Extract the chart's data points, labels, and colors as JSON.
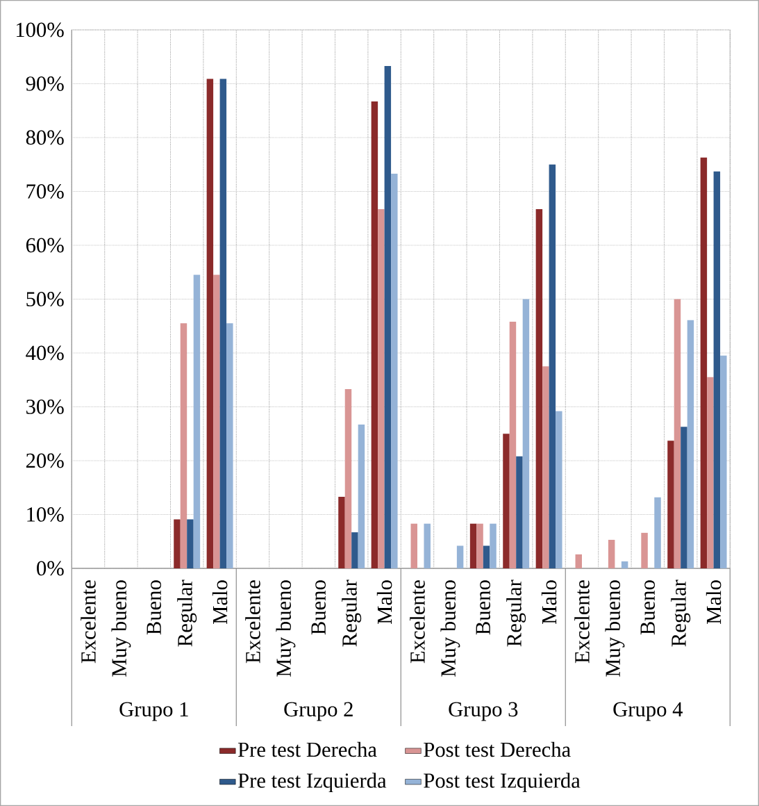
{
  "chart_data": {
    "type": "bar",
    "categories": [
      "Excelente",
      "Muy bueno",
      "Bueno",
      "Regular",
      "Malo",
      "Excelente",
      "Muy bueno",
      "Bueno",
      "Regular",
      "Malo",
      "Excelente",
      "Muy bueno",
      "Bueno",
      "Regular",
      "Malo",
      "Excelente",
      "Muy bueno",
      "Bueno",
      "Regular",
      "Malo"
    ],
    "series": [
      {
        "name": "Pre test Derecha",
        "color": "#8b2a2a",
        "values": [
          0,
          0,
          0,
          9.1,
          90.9,
          0,
          0,
          0,
          13.3,
          86.7,
          0,
          0,
          8.3,
          25,
          66.7,
          0,
          0,
          0,
          23.7,
          76.3
        ]
      },
      {
        "name": "Post test Derecha",
        "color": "#d99594",
        "values": [
          0,
          0,
          0,
          45.5,
          54.5,
          0,
          0,
          0,
          33.3,
          66.7,
          8.3,
          0,
          8.3,
          45.8,
          37.5,
          2.6,
          5.3,
          6.6,
          50,
          35.5
        ]
      },
      {
        "name": "Pre test Izquierda",
        "color": "#2f5a8c",
        "values": [
          0,
          0,
          0,
          9.1,
          90.9,
          0,
          0,
          0,
          6.7,
          93.3,
          0,
          0,
          4.2,
          20.8,
          75,
          0,
          0,
          0,
          26.3,
          73.7
        ]
      },
      {
        "name": "Post test  Izquierda",
        "color": "#95b3d7",
        "values": [
          0,
          0,
          0,
          54.5,
          45.5,
          0,
          0,
          0,
          26.7,
          73.3,
          8.3,
          4.2,
          8.3,
          50,
          29.2,
          0,
          1.3,
          13.2,
          46.1,
          39.5
        ]
      }
    ],
    "annotations": [
      "Grupo 1",
      "Grupo 2",
      "Grupo 3",
      "Grupo 4"
    ],
    "ylim": [
      0,
      100
    ],
    "yticks": [
      {
        "value": 0,
        "label": "0%"
      },
      {
        "value": 10,
        "label": "10%"
      },
      {
        "value": 20,
        "label": "20%"
      },
      {
        "value": 30,
        "label": "30%"
      },
      {
        "value": 40,
        "label": "40%"
      },
      {
        "value": 50,
        "label": "50%"
      },
      {
        "value": 60,
        "label": "60%"
      },
      {
        "value": 70,
        "label": "70%"
      },
      {
        "value": 80,
        "label": "80%"
      },
      {
        "value": 90,
        "label": "90%"
      },
      {
        "value": 100,
        "label": "100%"
      }
    ],
    "grid": true,
    "legend": "bottom"
  }
}
